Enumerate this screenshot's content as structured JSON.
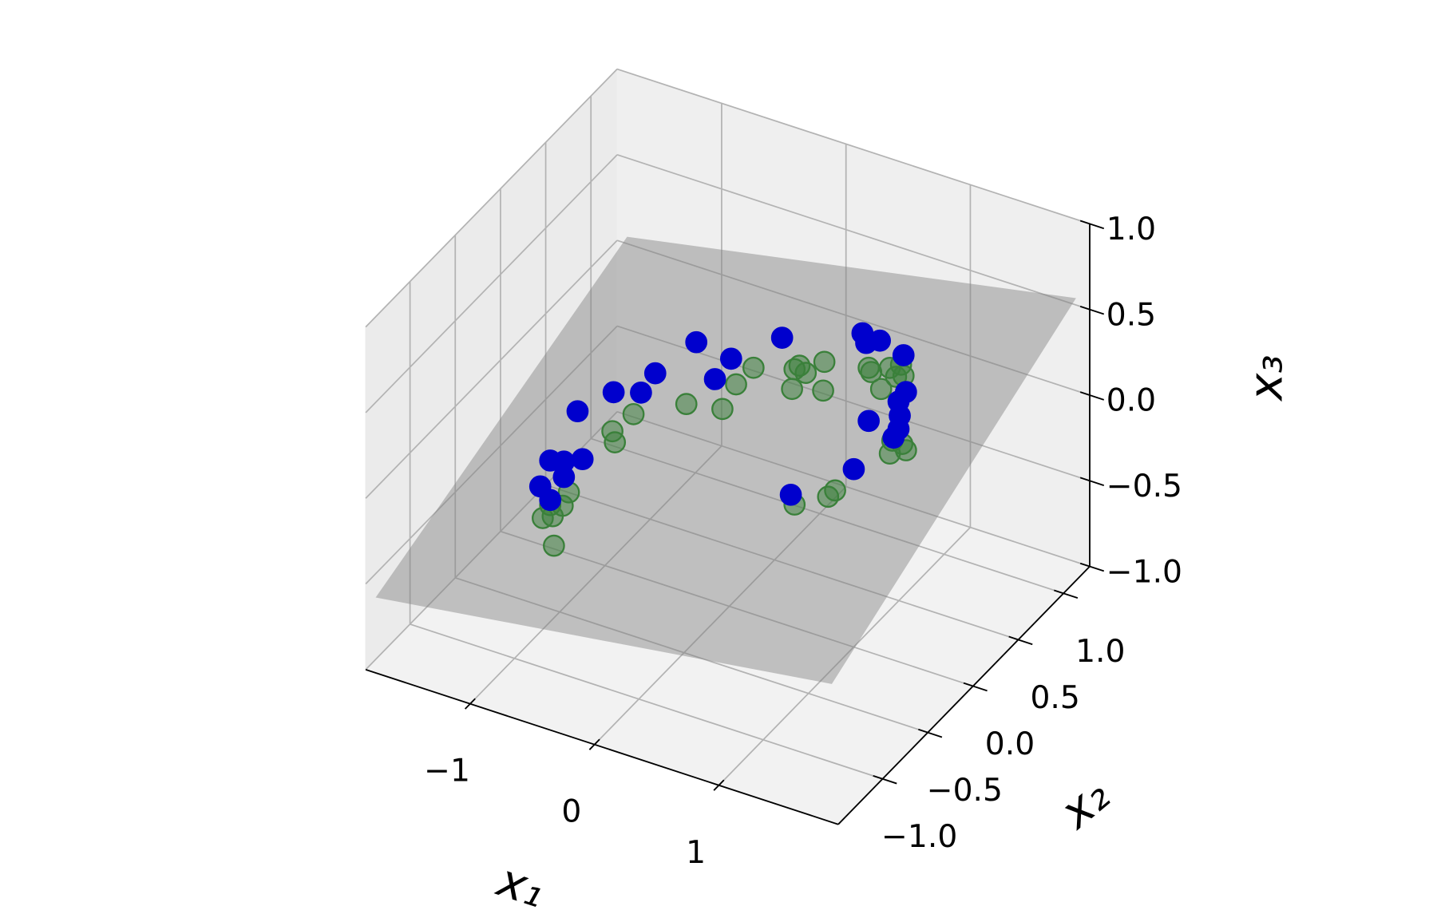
{
  "chart_data": {
    "type": "scatter3d",
    "xlabel": "x₁",
    "ylabel": "x₂",
    "zlabel": "x₃",
    "xlim": [
      -1.84,
      1.96
    ],
    "ylim": [
      -1.49,
      1.29
    ],
    "zlim": [
      -1,
      1
    ],
    "xticks": [
      {
        "value": -1,
        "label": "−1"
      },
      0,
      1
    ],
    "yticks": [
      {
        "value": -1,
        "label": "−1.0"
      },
      {
        "value": -0.5,
        "label": "−0.5"
      },
      {
        "value": 0,
        "label": "0.0"
      },
      {
        "value": 0.5,
        "label": "0.5"
      },
      {
        "value": 1,
        "label": "1.0"
      }
    ],
    "zticks": [
      {
        "value": -1,
        "label": "−1.0"
      },
      {
        "value": -0.5,
        "label": "−0.5"
      },
      {
        "value": 0,
        "label": "0.0"
      },
      {
        "value": 0.5,
        "label": "0.5"
      },
      {
        "value": 1,
        "label": "1.0"
      }
    ],
    "grid": true,
    "surface": {
      "color": "#808080",
      "alpha": 0.45,
      "x": [
        -1.76,
        1.85,
        1.85,
        -1.76
      ],
      "y": [
        -1.49,
        -1.41,
        1.29,
        1.29
      ],
      "z": [
        -0.56,
        -0.25,
        0.54,
        0.04
      ]
    },
    "series": [
      {
        "color": "#008000",
        "alpha": 0.5,
        "layer": "below",
        "x": [
          -0.14,
          -0.28,
          -0.68,
          -0.39,
          -0.29,
          -0.46,
          -0.44,
          0.23,
          0.43,
          0.28,
          0.19,
          0.17,
          0.42,
          0.99,
          1.01,
          1.16,
          1.25,
          1.27,
          1.09,
          1.21,
          1.18,
          1.26,
          1.29,
          1.16,
          -0.81,
          -0.86,
          -0.96,
          -1.02,
          -0.94,
          -0.93,
          0.19,
          0.46,
          0.72
        ],
        "y": [
          0.46,
          0.46,
          0.46,
          0.46,
          -0.66,
          -0.66,
          -0.66,
          0.46,
          0.46,
          0.46,
          0.46,
          0.46,
          0.46,
          0.18,
          0.18,
          0.18,
          0.18,
          0.18,
          0.18,
          0.18,
          0.18,
          0.18,
          0.18,
          0.18,
          -0.66,
          -0.66,
          -0.66,
          -0.66,
          -0.66,
          -0.66,
          0.46,
          0.46,
          0.18
        ],
        "z": [
          0.11,
          -0.02,
          -0.23,
          -0.19,
          0.41,
          0.27,
          0.21,
          0.21,
          0.28,
          0.18,
          0.18,
          0.06,
          0.11,
          0.53,
          0.51,
          0.57,
          0.61,
          0.55,
          0.43,
          0.53,
          0.15,
          0.15,
          0.12,
          0.07,
          -0.17,
          -0.26,
          -0.28,
          -0.37,
          -0.34,
          -0.51,
          -0.61,
          -0.5,
          -0.25
        ]
      },
      {
        "color": "#0000cd",
        "alpha": 1,
        "layer": "above",
        "x": [
          -0.6,
          0.09,
          -0.32,
          -0.93,
          -0.45,
          -0.45,
          -0.23,
          -0.74,
          0.94,
          0.97,
          1.08,
          1.27,
          1.29,
          1.23,
          1.24,
          0.99,
          1.23,
          1.19,
          -0.96,
          -0.85,
          -0.7,
          -0.85,
          -1.04,
          -0.96,
          0.87,
          0.16
        ],
        "y": [
          0.46,
          0.46,
          0.46,
          0.46,
          0.46,
          -0.66,
          -0.66,
          -0.66,
          0.18,
          0.18,
          0.18,
          0.18,
          0.18,
          0.18,
          0.18,
          0.18,
          0.18,
          0.18,
          -0.66,
          -0.66,
          -0.66,
          -0.66,
          -0.66,
          -0.66,
          0.18,
          0.46
        ],
        "z": [
          0.15,
          0.34,
          0.12,
          -0.11,
          -0.03,
          0.5,
          0.55,
          0.32,
          0.72,
          0.67,
          0.71,
          0.67,
          0.46,
          0.39,
          0.31,
          0.22,
          0.23,
          0.17,
          -0.02,
          0.0,
          0.05,
          -0.09,
          -0.19,
          -0.25,
          -0.09,
          -0.56
        ]
      }
    ]
  }
}
